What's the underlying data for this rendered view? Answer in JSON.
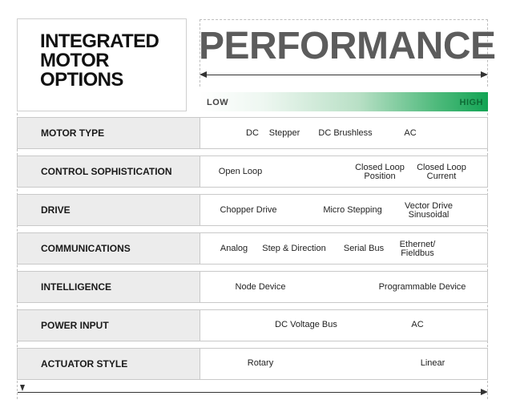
{
  "title": {
    "lines": [
      "INTEGRATED",
      "MOTOR",
      "OPTIONS"
    ]
  },
  "performance": {
    "title": "PERFORMANCE",
    "low_label": "LOW",
    "high_label": "HIGH"
  },
  "rows": [
    {
      "label": "MOTOR TYPE",
      "options": [
        [
          "DC"
        ],
        [
          "Stepper"
        ],
        [
          "DC Brushless"
        ],
        [
          "AC"
        ]
      ]
    },
    {
      "label": "CONTROL SOPHISTICATION",
      "options": [
        [
          "Open Loop"
        ],
        [
          "Closed Loop",
          "Position"
        ],
        [
          "Closed Loop",
          "Current"
        ]
      ]
    },
    {
      "label": "DRIVE",
      "options": [
        [
          "Chopper Drive"
        ],
        [
          "Micro Stepping"
        ],
        [
          "Vector Drive",
          "Sinusoidal"
        ]
      ]
    },
    {
      "label": "COMMUNICATIONS",
      "options": [
        [
          "Analog"
        ],
        [
          "Step & Direction"
        ],
        [
          "Serial Bus"
        ],
        [
          "Ethernet/",
          "Fieldbus"
        ]
      ]
    },
    {
      "label": "INTELLIGENCE",
      "options": [
        [
          "Node Device"
        ],
        [
          "Programmable Device"
        ]
      ]
    },
    {
      "label": "POWER INPUT",
      "options": [
        [
          "DC Voltage Bus"
        ],
        [
          "AC"
        ]
      ]
    },
    {
      "label": "ACTUATOR STYLE",
      "options": [
        [
          "Rotary"
        ],
        [
          "Linear"
        ]
      ]
    }
  ]
}
